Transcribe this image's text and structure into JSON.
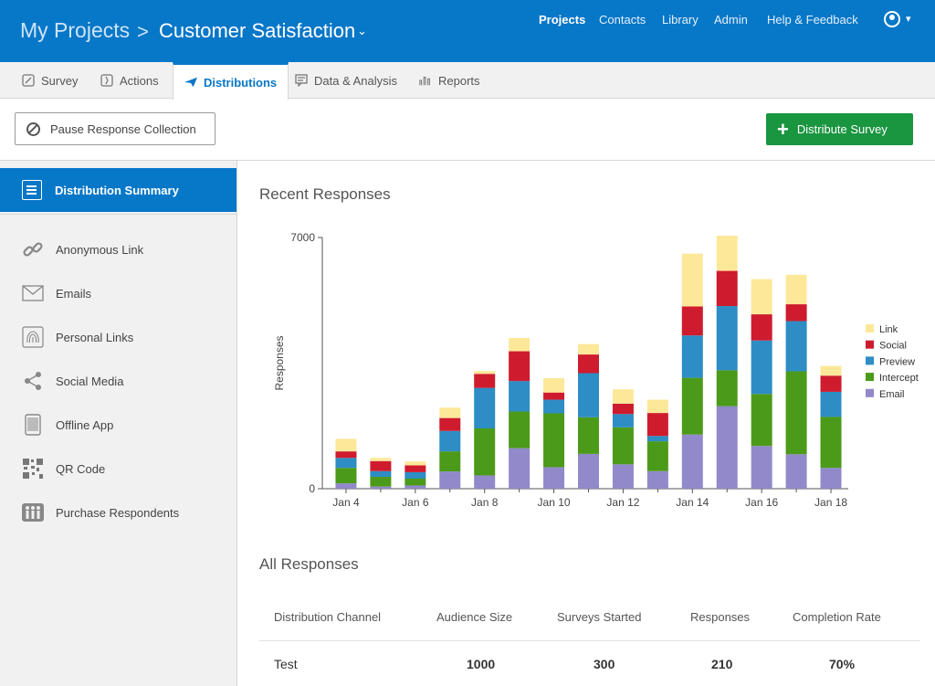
{
  "header": {
    "root": "My Projects",
    "separator": ">",
    "project": "Customer Satisfaction",
    "caret": "⌄",
    "nav": [
      "Projects",
      "Contacts",
      "Library",
      "Admin",
      "Help & Feedback"
    ],
    "accent": "#0777c8"
  },
  "tabs": [
    {
      "label": "Survey",
      "icon": "pencil-icon"
    },
    {
      "label": "Actions",
      "icon": "brackets-icon"
    },
    {
      "label": "Distributions",
      "icon": "paper-plane-icon"
    },
    {
      "label": "Data & Analysis",
      "icon": "comment-icon"
    },
    {
      "label": "Reports",
      "icon": "bar-chart-icon"
    }
  ],
  "actions": {
    "pause_label": "Pause Response Collection",
    "distribute_label": "Distribute Survey",
    "distribute_color": "#1a9540"
  },
  "sidebar": {
    "active": "Distribution Summary",
    "items": [
      {
        "label": "Anonymous Link",
        "icon": "link-icon"
      },
      {
        "label": "Emails",
        "icon": "envelope-icon"
      },
      {
        "label": "Personal Links",
        "icon": "fingerprint-icon"
      },
      {
        "label": "Social Media",
        "icon": "share-icon"
      },
      {
        "label": "Offline App",
        "icon": "tablet-icon"
      },
      {
        "label": "QR Code",
        "icon": "qr-code-icon"
      },
      {
        "label": "Purchase Respondents",
        "icon": "people-icon"
      }
    ]
  },
  "main": {
    "recent_title": "Recent Responses",
    "all_title": "All Responses",
    "table": {
      "headers": [
        "Distribution Channel",
        "Audience Size",
        "Surveys Started",
        "Responses",
        "Completion Rate"
      ],
      "rows": [
        [
          "Test",
          "1000",
          "300",
          "210",
          "70%"
        ]
      ]
    }
  },
  "chart_data": {
    "type": "bar",
    "stacked": true,
    "ylabel": "Responses",
    "ylim": [
      0,
      7000
    ],
    "ytick_labels": [
      "0",
      "7000"
    ],
    "xtick_labels": [
      "Jan 4",
      "Jan 6",
      "Jan 8",
      "Jan 10",
      "Jan 12",
      "Jan 14",
      "Jan 16",
      "Jan 18"
    ],
    "categories": [
      "Jan 4",
      "Jan 5",
      "Jan 6",
      "Jan 7",
      "Jan 8",
      "Jan 9",
      "Jan 10",
      "Jan 11",
      "Jan 12",
      "Jan 13",
      "Jan 14",
      "Jan 15",
      "Jan 16",
      "Jan 17",
      "Jan 18"
    ],
    "legend_position": "right",
    "series": [
      {
        "name": "Email",
        "color": "#9189c9",
        "values": [
          150,
          60,
          90,
          480,
          370,
          1130,
          600,
          970,
          680,
          490,
          1510,
          2300,
          1190,
          960,
          580
        ]
      },
      {
        "name": "Intercept",
        "color": "#4c9a19",
        "values": [
          430,
          270,
          190,
          560,
          1310,
          1020,
          1500,
          1020,
          1030,
          830,
          1580,
          1000,
          1450,
          2310,
          1420
        ]
      },
      {
        "name": "Preview",
        "color": "#2d8dc4",
        "values": [
          280,
          160,
          180,
          570,
          1130,
          850,
          380,
          1230,
          370,
          150,
          1180,
          1790,
          1490,
          1400,
          700
        ]
      },
      {
        "name": "Social",
        "color": "#cf1b2e",
        "values": [
          180,
          280,
          190,
          360,
          390,
          830,
          200,
          520,
          290,
          640,
          810,
          980,
          730,
          470,
          450
        ]
      },
      {
        "name": "Link",
        "color": "#fde89a",
        "values": [
          350,
          90,
          110,
          290,
          80,
          370,
          400,
          290,
          400,
          370,
          1470,
          980,
          980,
          820,
          270
        ]
      }
    ]
  }
}
